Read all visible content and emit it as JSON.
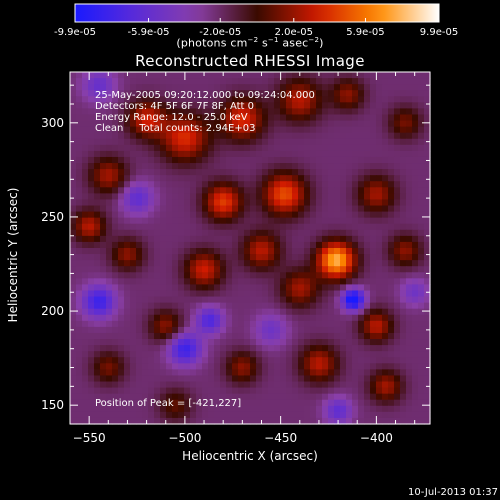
{
  "colorbar": {
    "tick_labels": [
      "-9.9e-05",
      "-5.9e-05",
      "-2.0e-05",
      "2.0e-05",
      "5.9e-05",
      "9.9e-05"
    ],
    "tick_values": [
      -9.9e-05,
      -5.9e-05,
      -2e-05,
      2e-05,
      5.9e-05,
      9.9e-05
    ],
    "unit": "(photons cm-2 s-1 asec-2)",
    "range": [
      -9.9e-05,
      9.9e-05
    ],
    "colors": [
      "#1a1aff",
      "#5a2bd8",
      "#8a3fa8",
      "#3a0a00",
      "#d01a00",
      "#ff8c00",
      "#ffffff"
    ]
  },
  "chart_data": {
    "type": "heatmap",
    "title": "Reconstructed RHESSI Image",
    "xlabel": "Heliocentric X (arcsec)",
    "ylabel": "Heliocentric Y (arcsec)",
    "xlim": [
      -560,
      -372
    ],
    "ylim": [
      140,
      327
    ],
    "x_ticks": [
      -550,
      -500,
      -450,
      -400
    ],
    "y_ticks": [
      150,
      200,
      250,
      300
    ],
    "x_tick_labels": [
      "−550",
      "−500",
      "−450",
      "−400"
    ],
    "y_tick_labels": [
      "150",
      "200",
      "250",
      "300"
    ],
    "annotations": {
      "time_range": "25-May-2005 09:20:12.000 to 09:24:04.000",
      "detectors": "Detectors: 4F 5F 6F 7F 8F, Att 0",
      "energy": "Energy Range: 12.0 - 25.0 keV",
      "method": "Clean     Total counts: 2.94E+03",
      "peak": "Position of Peak = [-421,227]"
    },
    "peak_position": [
      -421,
      227
    ],
    "sources": [
      {
        "x": -421,
        "y": 227,
        "intensity": 9.9e-05,
        "sigma": 7
      },
      {
        "x": -448,
        "y": 262,
        "intensity": 7e-05,
        "sigma": 8
      },
      {
        "x": -480,
        "y": 258,
        "intensity": 6.5e-05,
        "sigma": 7
      },
      {
        "x": -500,
        "y": 292,
        "intensity": 6e-05,
        "sigma": 9
      },
      {
        "x": -470,
        "y": 302,
        "intensity": 6e-05,
        "sigma": 8
      },
      {
        "x": -440,
        "y": 312,
        "intensity": 5e-05,
        "sigma": 8
      },
      {
        "x": -520,
        "y": 302,
        "intensity": 5.5e-05,
        "sigma": 7
      },
      {
        "x": -540,
        "y": 272,
        "intensity": 4.5e-05,
        "sigma": 7
      },
      {
        "x": -550,
        "y": 245,
        "intensity": 5e-05,
        "sigma": 6
      },
      {
        "x": -530,
        "y": 230,
        "intensity": 4e-05,
        "sigma": 6
      },
      {
        "x": -490,
        "y": 222,
        "intensity": 5.5e-05,
        "sigma": 7
      },
      {
        "x": -460,
        "y": 232,
        "intensity": 5e-05,
        "sigma": 7
      },
      {
        "x": -440,
        "y": 212,
        "intensity": 4.5e-05,
        "sigma": 7
      },
      {
        "x": -400,
        "y": 262,
        "intensity": 4.5e-05,
        "sigma": 7
      },
      {
        "x": -385,
        "y": 232,
        "intensity": 4e-05,
        "sigma": 6
      },
      {
        "x": -400,
        "y": 192,
        "intensity": 5e-05,
        "sigma": 6
      },
      {
        "x": -430,
        "y": 172,
        "intensity": 5e-05,
        "sigma": 7
      },
      {
        "x": -395,
        "y": 160,
        "intensity": 4.5e-05,
        "sigma": 6
      },
      {
        "x": -470,
        "y": 170,
        "intensity": 4e-05,
        "sigma": 6
      },
      {
        "x": -510,
        "y": 192,
        "intensity": 4e-05,
        "sigma": 6
      },
      {
        "x": -540,
        "y": 170,
        "intensity": 3.5e-05,
        "sigma": 6
      },
      {
        "x": -505,
        "y": 150,
        "intensity": 3e-05,
        "sigma": 6
      },
      {
        "x": -415,
        "y": 315,
        "intensity": 4e-05,
        "sigma": 6
      },
      {
        "x": -385,
        "y": 300,
        "intensity": 3.5e-05,
        "sigma": 6
      },
      {
        "x": -545,
        "y": 205,
        "intensity": -6e-05,
        "sigma": 6
      },
      {
        "x": -500,
        "y": 180,
        "intensity": -6e-05,
        "sigma": 6
      },
      {
        "x": -487,
        "y": 195,
        "intensity": -5e-05,
        "sigma": 5
      },
      {
        "x": -525,
        "y": 260,
        "intensity": -4e-05,
        "sigma": 6
      },
      {
        "x": -412,
        "y": 206,
        "intensity": -9e-05,
        "sigma": 4
      },
      {
        "x": -545,
        "y": 320,
        "intensity": -3.5e-05,
        "sigma": 6
      },
      {
        "x": -420,
        "y": 147,
        "intensity": -4e-05,
        "sigma": 5
      },
      {
        "x": -455,
        "y": 190,
        "intensity": -3e-05,
        "sigma": 6
      },
      {
        "x": -380,
        "y": 210,
        "intensity": -3e-05,
        "sigma": 5
      }
    ]
  },
  "footer": {
    "timestamp": "10-Jul-2013 01:37"
  }
}
